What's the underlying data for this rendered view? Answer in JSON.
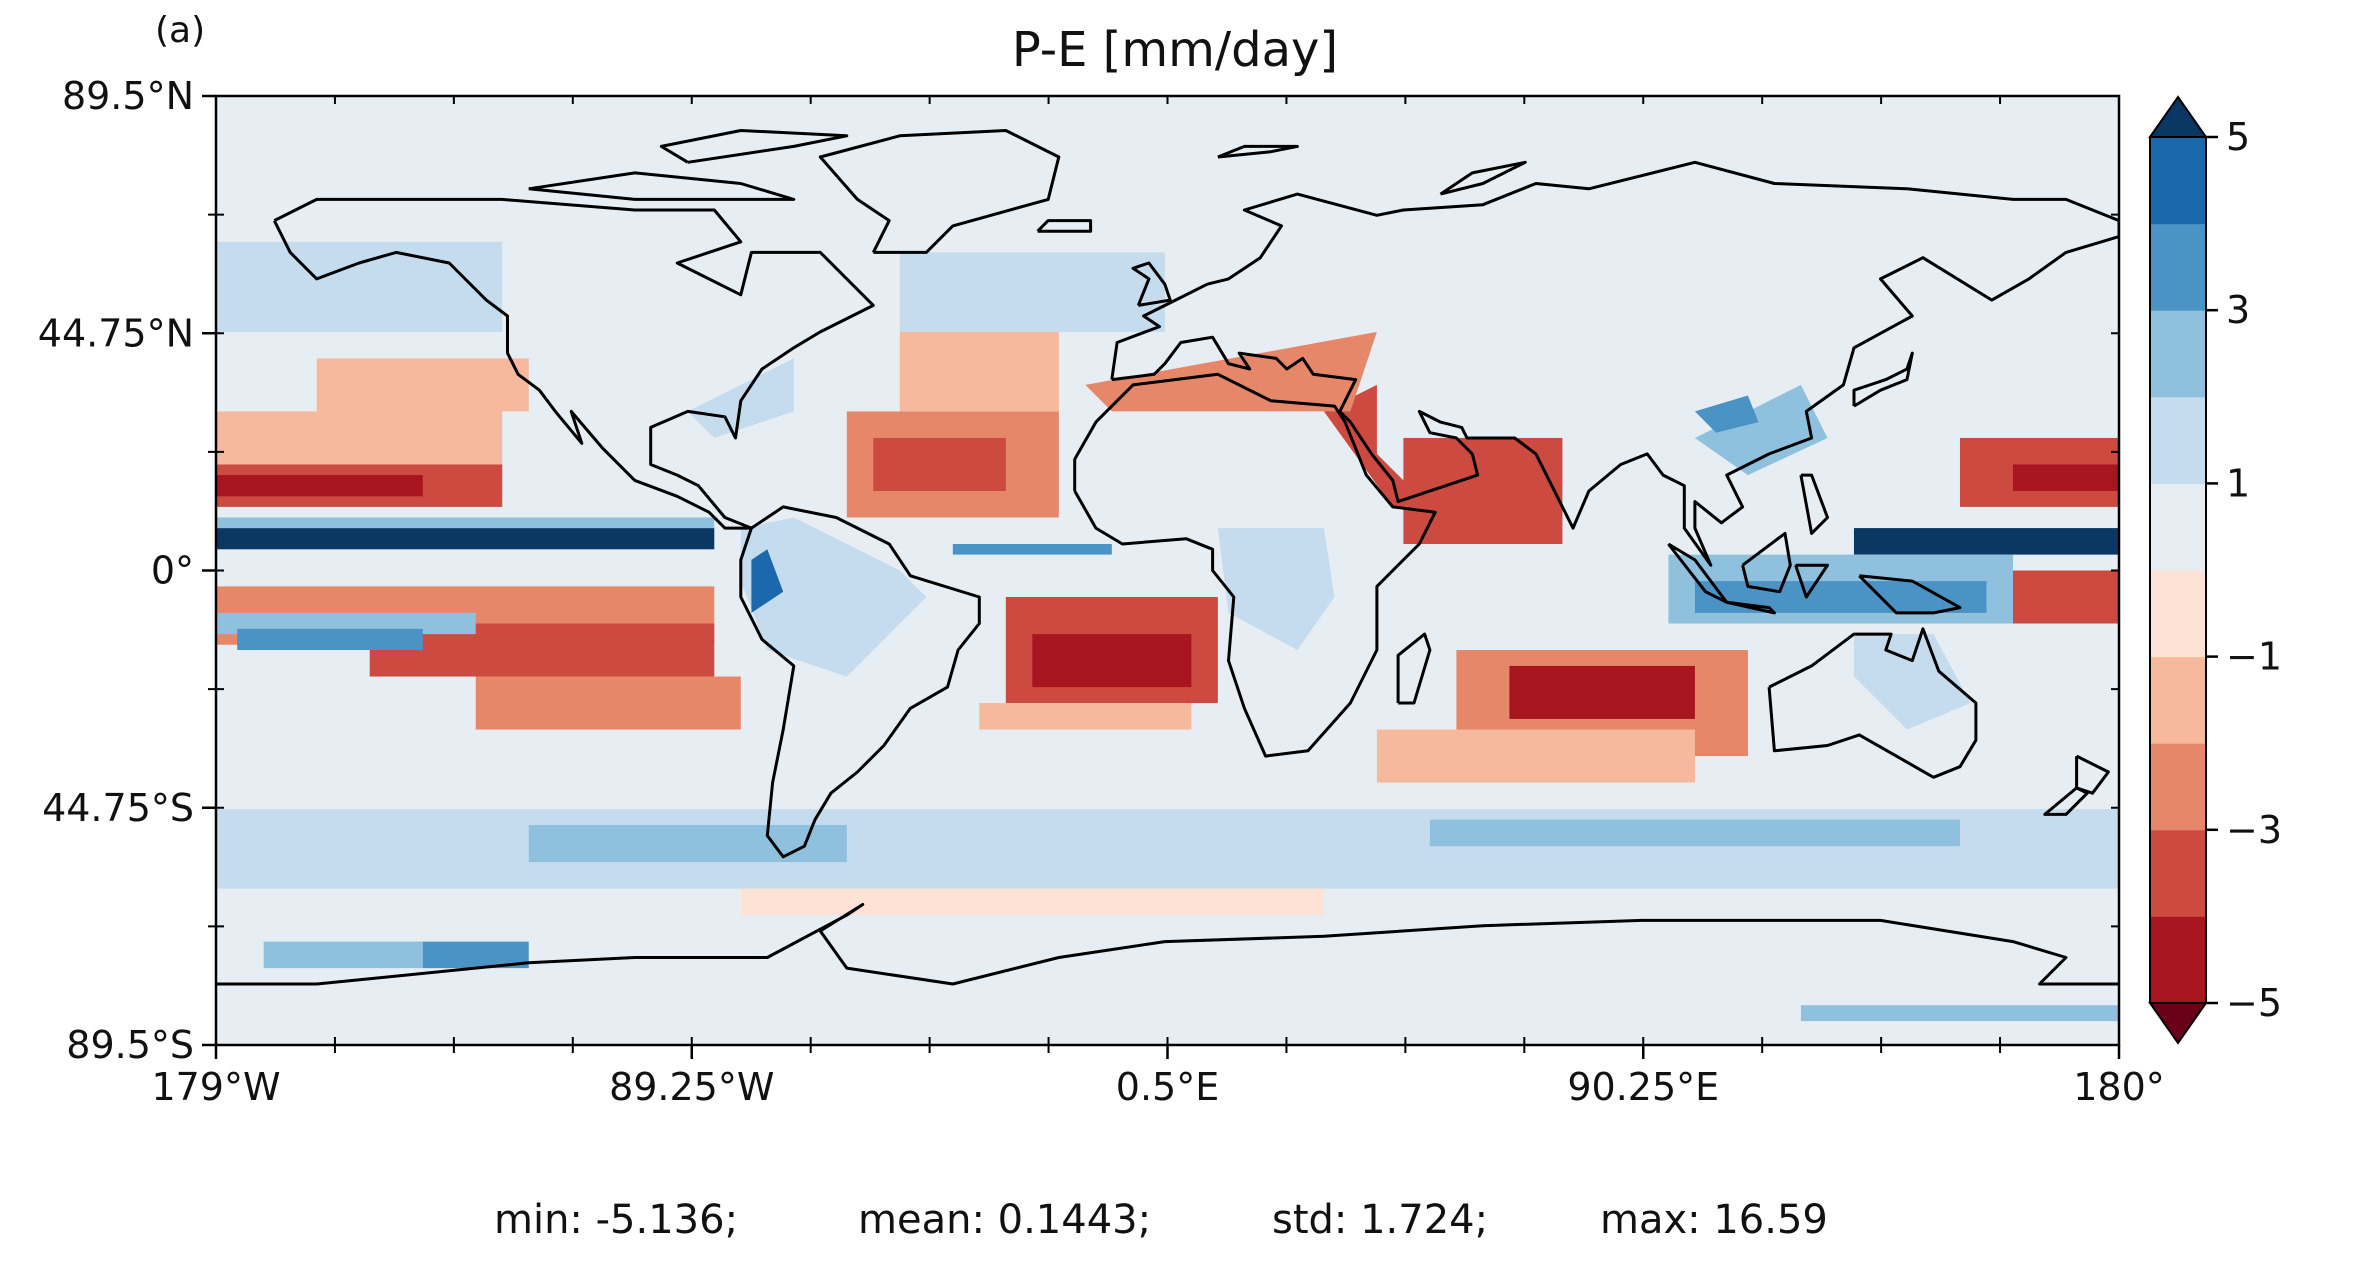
{
  "panel_label": "(a)",
  "title": "P-E [mm/day]",
  "map": {
    "projection": "PlateCarree",
    "lon_range": [
      -179,
      180
    ],
    "lat_range": [
      -89.5,
      89.5
    ],
    "x_ticks": [
      "179°W",
      "89.25°W",
      "0.5°E",
      "90.25°E",
      "180°"
    ],
    "x_tick_values": [
      -179,
      -89.25,
      0.5,
      90.25,
      180
    ],
    "y_ticks": [
      "89.5°N",
      "44.75°N",
      "0°",
      "44.75°S",
      "89.5°S"
    ],
    "y_tick_values": [
      89.5,
      44.75,
      0,
      -44.75,
      -89.5
    ],
    "coastlines": true,
    "background_color": "#e6eef3"
  },
  "colorbar": {
    "tick_labels": [
      "5",
      "3",
      "1",
      "−1",
      "−3",
      "−5"
    ],
    "tick_values": [
      5,
      3,
      1,
      -1,
      -3,
      -5
    ],
    "levels": [
      -5,
      -4,
      -3,
      -2,
      -1,
      0,
      1,
      2,
      3,
      4,
      5
    ],
    "extend": "both",
    "colors": [
      "#a7151f",
      "#cc4a3f",
      "#e6876a",
      "#f6b99d",
      "#fce3d6",
      "#e6eef3",
      "#c4dced",
      "#8fc1de",
      "#4b93c4",
      "#1c68ac"
    ],
    "under_color": "#6b0119",
    "over_color": "#0b3765"
  },
  "stats": {
    "min": "min: -5.136;",
    "mean": "mean: 0.1443;",
    "std": "std: 1.724;",
    "max": "max: 16.59"
  }
}
